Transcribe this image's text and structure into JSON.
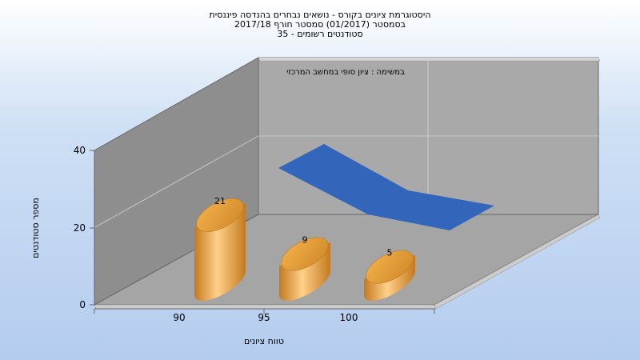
{
  "chart_data": {
    "type": "bar",
    "title_lines": [
      "היסטוגרמת ציונים בקורס - נושאים נבחרים בהנדסה פיננסית",
      "בסמסטר  (01/2017)  סמסטר חורף 2017/18",
      "סטודנטים רשומים - 35"
    ],
    "categories": [
      "90",
      "95",
      "100"
    ],
    "values": [
      21,
      9,
      5
    ],
    "xlabel": "טווח ציונים",
    "ylabel": "מספר סטודנטים",
    "y_ticks": [
      "0",
      "20",
      "40"
    ],
    "ylim": [
      0,
      40
    ],
    "back_wall_label": "במשימה : ציון סופי במחשב המרכזי",
    "colors": {
      "bars": "#f0a830",
      "area": "#3366bb",
      "wall": "#a9a9a9"
    }
  }
}
